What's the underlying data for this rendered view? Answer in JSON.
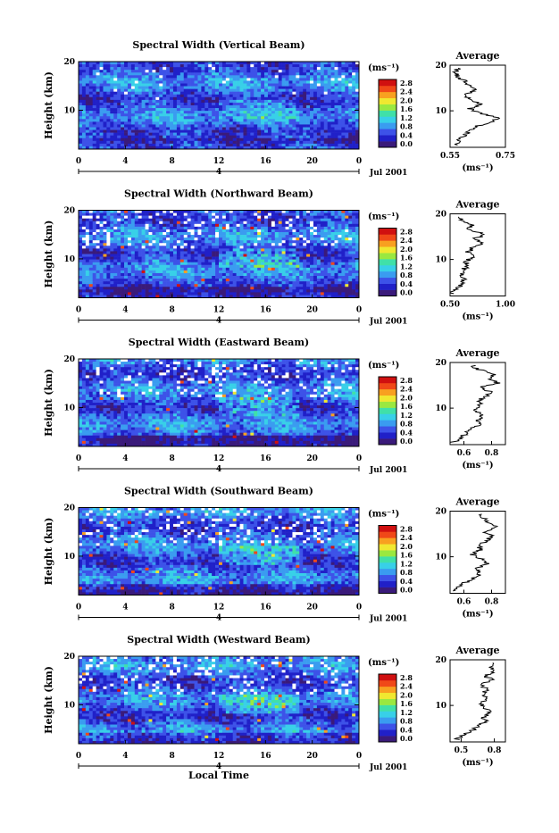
{
  "chart_data": [
    {
      "type": "heatmap",
      "title": "Spectral Width (Vertical Beam)",
      "ylabel": "Height (km)",
      "xlim": [
        0,
        24
      ],
      "ylim": [
        2,
        20
      ],
      "x_ticks": [
        "0",
        "4",
        "8",
        "12",
        "16",
        "20",
        "0"
      ],
      "y_ticks": [
        "20",
        "10"
      ],
      "colorbar_unit": "(ms⁻¹)",
      "colorbar_ticks": [
        "0.0",
        "0.4",
        "0.8",
        "1.2",
        "1.6",
        "2.0",
        "2.4",
        "2.8"
      ],
      "date_marker": "4",
      "date_label": "Jul 2001",
      "average": {
        "title": "Average",
        "xlabel": "(ms⁻¹)",
        "xlim": [
          0.55,
          0.75
        ],
        "x_ticks": [
          "0.55",
          "0.75"
        ],
        "y_ticks": [
          "20",
          "10"
        ],
        "profile": [
          [
            0.57,
            2.5
          ],
          [
            0.58,
            3.5
          ],
          [
            0.6,
            4.5
          ],
          [
            0.62,
            5.5
          ],
          [
            0.64,
            6.5
          ],
          [
            0.7,
            7.5
          ],
          [
            0.72,
            8.5
          ],
          [
            0.66,
            9.5
          ],
          [
            0.62,
            10.5
          ],
          [
            0.66,
            11.5
          ],
          [
            0.63,
            12.5
          ],
          [
            0.6,
            13.5
          ],
          [
            0.64,
            14.5
          ],
          [
            0.62,
            15.5
          ],
          [
            0.6,
            16.5
          ],
          [
            0.58,
            17.5
          ],
          [
            0.57,
            18.5
          ],
          [
            0.58,
            19.5
          ]
        ]
      }
    },
    {
      "type": "heatmap",
      "title": "Spectral Width (Northward Beam)",
      "ylabel": "Height (km)",
      "xlim": [
        0,
        24
      ],
      "ylim": [
        2,
        20
      ],
      "x_ticks": [
        "0",
        "4",
        "8",
        "12",
        "16",
        "20",
        "0"
      ],
      "y_ticks": [
        "20",
        "10"
      ],
      "colorbar_unit": "(ms⁻¹)",
      "colorbar_ticks": [
        "0.0",
        "0.4",
        "0.8",
        "1.2",
        "1.6",
        "2.0",
        "2.4",
        "2.8"
      ],
      "date_marker": "4",
      "date_label": "Jul 2001",
      "average": {
        "title": "Average",
        "xlabel": "(ms⁻¹)",
        "xlim": [
          0.5,
          1.0
        ],
        "x_ticks": [
          "0.50",
          "1.00"
        ],
        "y_ticks": [
          "20",
          "10"
        ],
        "profile": [
          [
            0.52,
            2.5
          ],
          [
            0.55,
            3.5
          ],
          [
            0.6,
            4.5
          ],
          [
            0.63,
            5.5
          ],
          [
            0.62,
            6.5
          ],
          [
            0.6,
            7.5
          ],
          [
            0.66,
            8.5
          ],
          [
            0.64,
            9.5
          ],
          [
            0.7,
            10.5
          ],
          [
            0.66,
            11.5
          ],
          [
            0.7,
            12.5
          ],
          [
            0.78,
            13.5
          ],
          [
            0.72,
            14.5
          ],
          [
            0.82,
            15.5
          ],
          [
            0.66,
            16.5
          ],
          [
            0.7,
            17.5
          ],
          [
            0.62,
            18.5
          ],
          [
            0.6,
            19.5
          ]
        ]
      }
    },
    {
      "type": "heatmap",
      "title": "Spectral Width (Eastward Beam)",
      "ylabel": "Height (km)",
      "xlim": [
        0,
        24
      ],
      "ylim": [
        2,
        20
      ],
      "x_ticks": [
        "0",
        "4",
        "8",
        "12",
        "16",
        "20",
        "0"
      ],
      "y_ticks": [
        "20",
        "10"
      ],
      "colorbar_unit": "(ms⁻¹)",
      "colorbar_ticks": [
        "0.0",
        "0.4",
        "0.8",
        "1.2",
        "1.6",
        "2.0",
        "2.4",
        "2.8"
      ],
      "date_marker": "4",
      "date_label": "Jul 2001",
      "average": {
        "title": "Average",
        "xlabel": "(ms⁻¹)",
        "xlim": [
          0.5,
          0.9
        ],
        "x_ticks": [
          "0.6",
          "0.8"
        ],
        "y_ticks": [
          "20",
          "10"
        ],
        "profile": [
          [
            0.52,
            2.5
          ],
          [
            0.58,
            3.5
          ],
          [
            0.62,
            4.5
          ],
          [
            0.66,
            5.5
          ],
          [
            0.72,
            6.5
          ],
          [
            0.7,
            7.5
          ],
          [
            0.74,
            8.5
          ],
          [
            0.66,
            9.5
          ],
          [
            0.72,
            10.5
          ],
          [
            0.7,
            11.5
          ],
          [
            0.76,
            12.5
          ],
          [
            0.8,
            13.5
          ],
          [
            0.72,
            14.5
          ],
          [
            0.84,
            15.5
          ],
          [
            0.78,
            16.5
          ],
          [
            0.82,
            17.5
          ],
          [
            0.7,
            18.5
          ],
          [
            0.66,
            19.5
          ]
        ]
      }
    },
    {
      "type": "heatmap",
      "title": "Spectral Width (Southward Beam)",
      "ylabel": "Height (km)",
      "xlim": [
        0,
        24
      ],
      "ylim": [
        2,
        20
      ],
      "x_ticks": [
        "0",
        "4",
        "8",
        "12",
        "16",
        "20",
        "0"
      ],
      "y_ticks": [
        "20",
        "10"
      ],
      "colorbar_unit": "(ms⁻¹)",
      "colorbar_ticks": [
        "0.0",
        "0.4",
        "0.8",
        "1.2",
        "1.6",
        "2.0",
        "2.4",
        "2.8"
      ],
      "date_marker": "4",
      "date_label": "Jul 2001",
      "average": {
        "title": "Average",
        "xlabel": "(ms⁻¹)",
        "xlim": [
          0.5,
          0.9
        ],
        "x_ticks": [
          "0.6",
          "0.8"
        ],
        "y_ticks": [
          "20",
          "10"
        ],
        "profile": [
          [
            0.52,
            2.5
          ],
          [
            0.56,
            3.5
          ],
          [
            0.62,
            4.5
          ],
          [
            0.68,
            5.5
          ],
          [
            0.72,
            6.5
          ],
          [
            0.7,
            7.5
          ],
          [
            0.76,
            8.5
          ],
          [
            0.72,
            9.5
          ],
          [
            0.66,
            10.5
          ],
          [
            0.72,
            11.5
          ],
          [
            0.7,
            12.5
          ],
          [
            0.76,
            13.5
          ],
          [
            0.8,
            14.5
          ],
          [
            0.74,
            15.5
          ],
          [
            0.84,
            16.5
          ],
          [
            0.78,
            17.5
          ],
          [
            0.74,
            18.5
          ],
          [
            0.7,
            19.5
          ]
        ]
      }
    },
    {
      "type": "heatmap",
      "title": "Spectral Width (Westward Beam)",
      "ylabel": "Height (km)",
      "xlabel": "Local Time",
      "xlim": [
        0,
        24
      ],
      "ylim": [
        2,
        20
      ],
      "x_ticks": [
        "0",
        "4",
        "8",
        "12",
        "16",
        "20",
        "0"
      ],
      "y_ticks": [
        "20",
        "10"
      ],
      "colorbar_unit": "(ms⁻¹)",
      "colorbar_ticks": [
        "0.0",
        "0.4",
        "0.8",
        "1.2",
        "1.6",
        "2.0",
        "2.4",
        "2.8"
      ],
      "date_marker": "4",
      "date_label": "Jul 2001",
      "average": {
        "title": "Average",
        "xlabel": "(ms⁻¹)",
        "xlim": [
          0.4,
          0.9
        ],
        "x_ticks": [
          "0.5",
          "0.8"
        ],
        "y_ticks": [
          "20",
          "10"
        ],
        "profile": [
          [
            0.46,
            2.5
          ],
          [
            0.52,
            3.5
          ],
          [
            0.6,
            4.5
          ],
          [
            0.66,
            5.5
          ],
          [
            0.72,
            6.5
          ],
          [
            0.7,
            7.5
          ],
          [
            0.76,
            8.5
          ],
          [
            0.72,
            9.5
          ],
          [
            0.68,
            10.5
          ],
          [
            0.74,
            11.5
          ],
          [
            0.7,
            12.5
          ],
          [
            0.74,
            13.5
          ],
          [
            0.68,
            14.5
          ],
          [
            0.78,
            15.5
          ],
          [
            0.72,
            16.5
          ],
          [
            0.82,
            17.5
          ],
          [
            0.76,
            18.5
          ],
          [
            0.8,
            19.5
          ]
        ]
      }
    }
  ],
  "colors": {
    "colormap": [
      "#3a1a7a",
      "#2020c8",
      "#3d52e8",
      "#3a9cf0",
      "#38d0e8",
      "#40e0a8",
      "#9ae840",
      "#f0e830",
      "#f8a020",
      "#f04818",
      "#d01010"
    ],
    "outline": "#000000"
  }
}
